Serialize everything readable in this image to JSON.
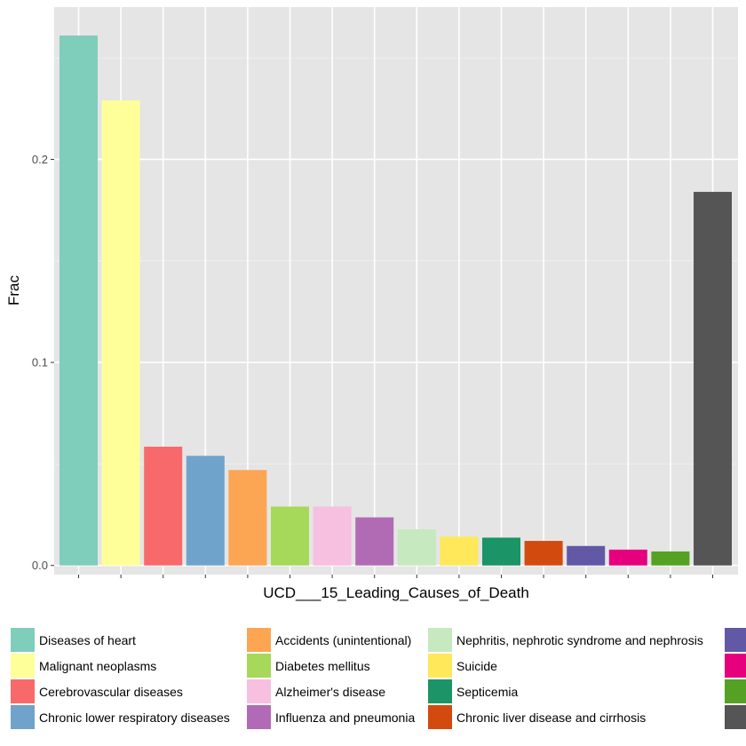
{
  "chart_data": {
    "type": "bar",
    "xlabel": "UCD___15_Leading_Causes_of_Death",
    "ylabel": "Frac",
    "ylim": [
      -0.0045,
      0.275
    ],
    "yticks": [
      0.0,
      0.1,
      0.2
    ],
    "ytick_labels": [
      "0.0",
      "0.1",
      "0.2"
    ],
    "grid": true,
    "legend_position": "bottom",
    "categories": [
      "Diseases of heart",
      "Malignant neoplasms",
      "Cerebrovascular diseases",
      "Chronic lower respiratory diseases",
      "Accidents (unintentional)",
      "Diabetes mellitus",
      "Alzheimer's disease",
      "Influenza and pneumonia",
      "Nephritis, nephrotic syndrome and nephrosis",
      "Suicide",
      "Septicemia",
      "Chronic liver disease and cirrhosis",
      "",
      "",
      "",
      ""
    ],
    "values": [
      0.261,
      0.229,
      0.0585,
      0.054,
      0.047,
      0.029,
      0.029,
      0.0237,
      0.0178,
      0.0142,
      0.0137,
      0.0121,
      0.0096,
      0.0078,
      0.0069,
      0.184
    ],
    "colors": [
      "#7fcdbb",
      "#ffff99",
      "#f8696b",
      "#6fa3cc",
      "#fca553",
      "#a6d85a",
      "#f7bfe0",
      "#b16bb4",
      "#c6e9bf",
      "#ffe85a",
      "#1b9467",
      "#d34a0f",
      "#6159a6",
      "#e6007e",
      "#55a124",
      "#555555"
    ]
  }
}
